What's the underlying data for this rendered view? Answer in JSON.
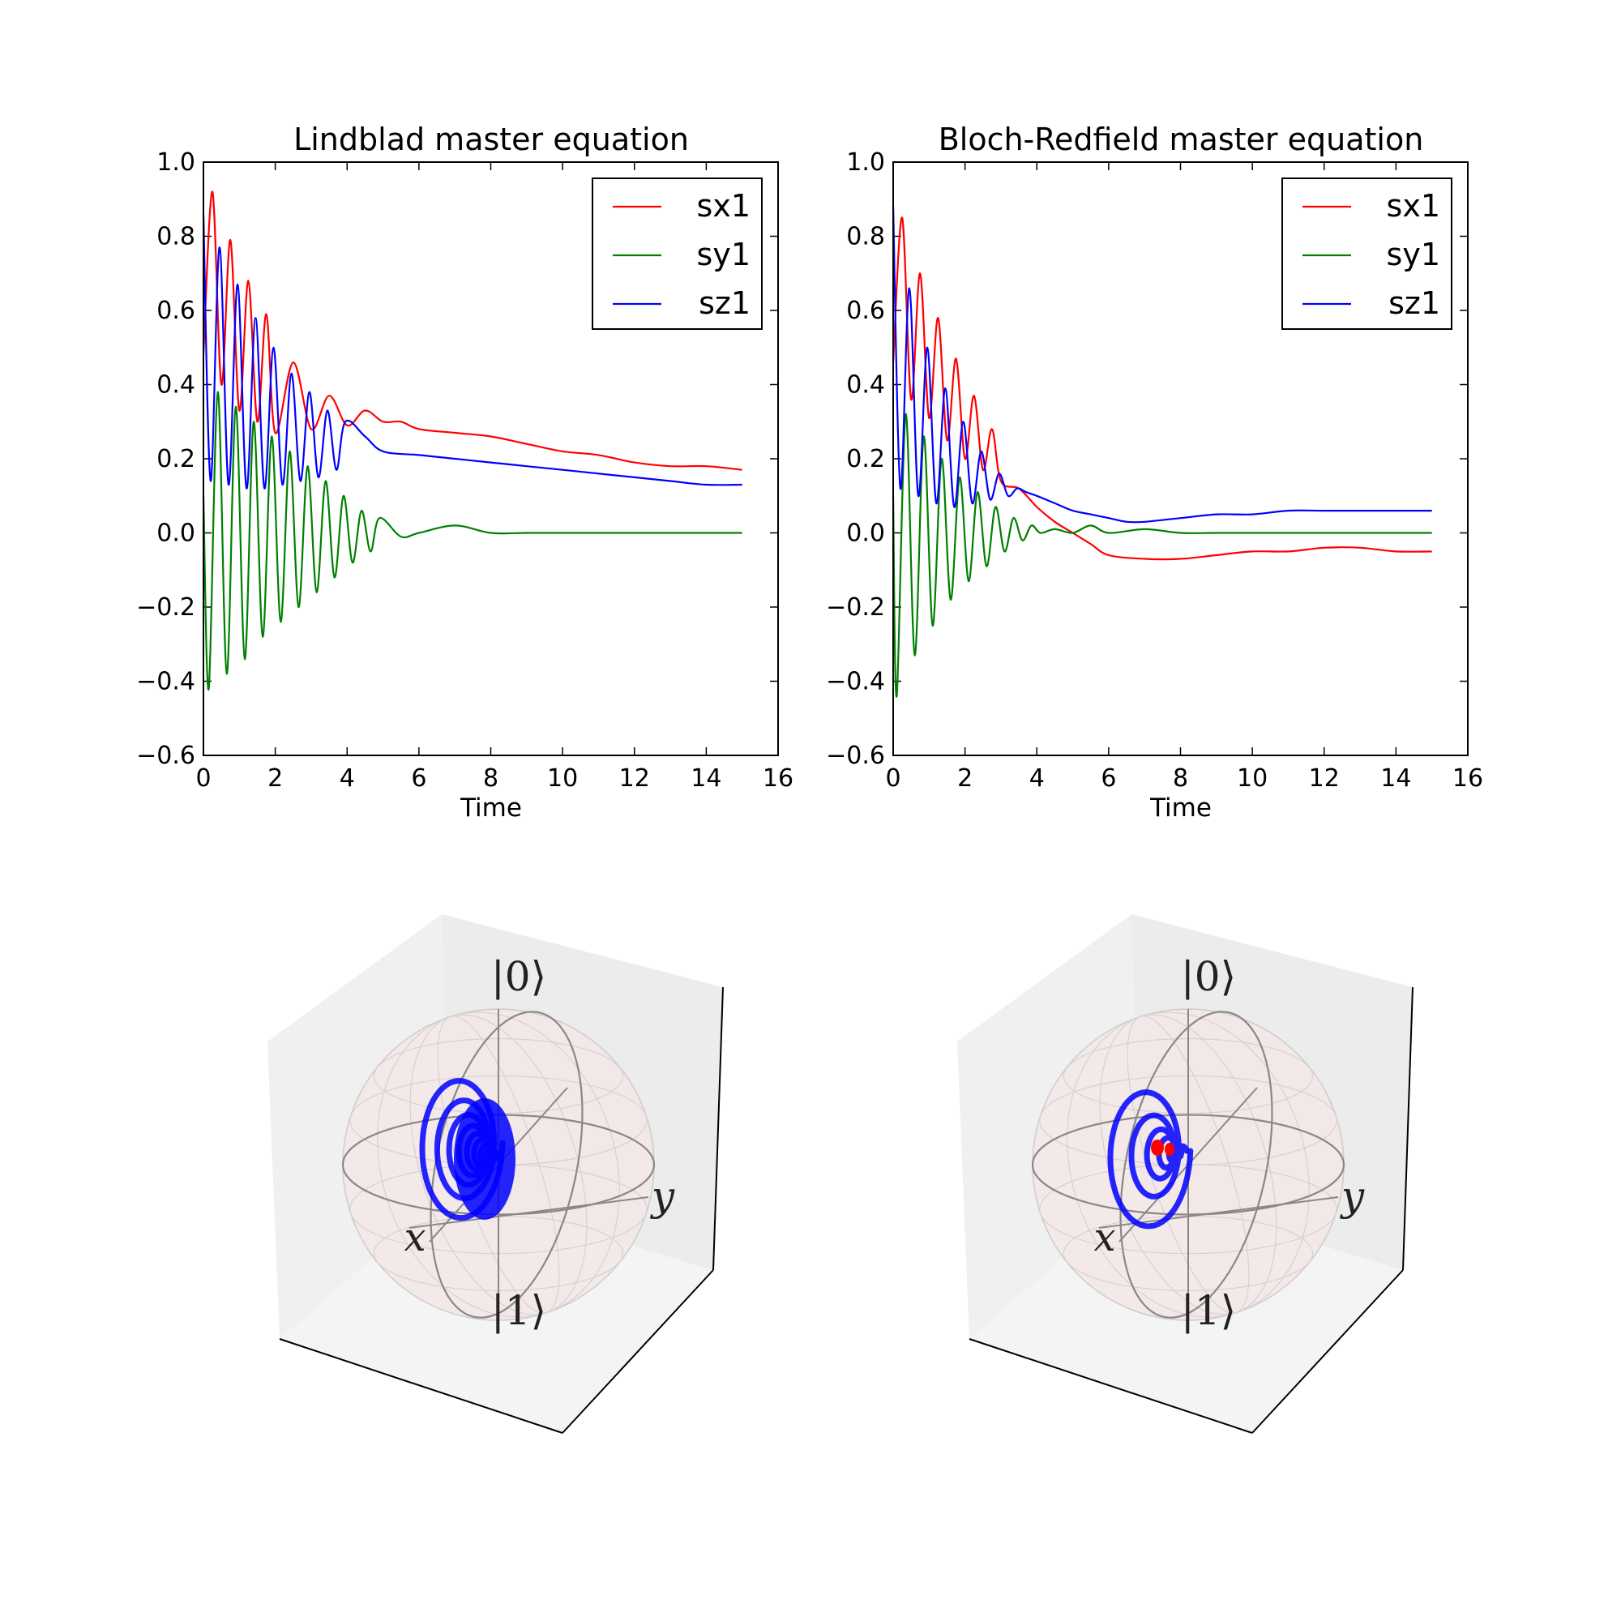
{
  "chart_data": [
    {
      "type": "line",
      "title": "Lindblad master equation",
      "xlabel": "Time",
      "ylabel": "",
      "xlim": [
        0,
        16
      ],
      "ylim": [
        -0.6,
        1.0
      ],
      "xticks": [
        0,
        2,
        4,
        6,
        8,
        10,
        12,
        14,
        16
      ],
      "yticks": [
        -0.6,
        -0.4,
        -0.2,
        0.0,
        0.2,
        0.4,
        0.6,
        0.8,
        1.0
      ],
      "xtick_labels": [
        "0",
        "2",
        "4",
        "6",
        "8",
        "10",
        "12",
        "14",
        "16"
      ],
      "ytick_labels": [
        "−0.6",
        "−0.4",
        "−0.2",
        "0.0",
        "0.2",
        "0.4",
        "0.6",
        "0.8",
        "1.0"
      ],
      "legend_position": "top-right",
      "grid": false,
      "series": [
        {
          "name": "sx1",
          "color": "#ff0000",
          "x": [
            0,
            0.25,
            0.5,
            0.75,
            1,
            1.25,
            1.5,
            1.75,
            2,
            2.5,
            3,
            3.5,
            4,
            4.5,
            5,
            5.5,
            6,
            7,
            8,
            9,
            10,
            11,
            12,
            13,
            14,
            15
          ],
          "y": [
            0.48,
            0.92,
            0.4,
            0.79,
            0.33,
            0.68,
            0.3,
            0.59,
            0.27,
            0.46,
            0.28,
            0.37,
            0.29,
            0.33,
            0.3,
            0.3,
            0.28,
            0.27,
            0.26,
            0.24,
            0.22,
            0.21,
            0.19,
            0.18,
            0.18,
            0.17
          ]
        },
        {
          "name": "sy1",
          "color": "#008000",
          "x": [
            0,
            0.15,
            0.4,
            0.65,
            0.9,
            1.15,
            1.4,
            1.65,
            1.9,
            2.15,
            2.4,
            2.65,
            2.9,
            3.15,
            3.4,
            3.65,
            3.9,
            4.15,
            4.4,
            4.65,
            4.9,
            5.5,
            6,
            7,
            8,
            9,
            10,
            11,
            12,
            13,
            14,
            15
          ],
          "y": [
            0.1,
            -0.42,
            0.38,
            -0.38,
            0.34,
            -0.34,
            0.3,
            -0.28,
            0.26,
            -0.24,
            0.22,
            -0.2,
            0.18,
            -0.16,
            0.14,
            -0.12,
            0.1,
            -0.08,
            0.06,
            -0.05,
            0.04,
            -0.01,
            0.0,
            0.02,
            0.0,
            0.0,
            0.0,
            0.0,
            0.0,
            0.0,
            0.0,
            0.0
          ]
        },
        {
          "name": "sz1",
          "color": "#0000ff",
          "x": [
            0,
            0.2,
            0.45,
            0.7,
            0.95,
            1.2,
            1.45,
            1.7,
            1.95,
            2.2,
            2.45,
            2.7,
            2.95,
            3.2,
            3.45,
            3.7,
            3.95,
            4.5,
            5,
            6,
            7,
            8,
            9,
            10,
            11,
            12,
            13,
            14,
            15
          ],
          "y": [
            0.86,
            0.14,
            0.77,
            0.13,
            0.67,
            0.12,
            0.58,
            0.12,
            0.5,
            0.13,
            0.43,
            0.14,
            0.38,
            0.15,
            0.33,
            0.17,
            0.3,
            0.26,
            0.22,
            0.21,
            0.2,
            0.19,
            0.18,
            0.17,
            0.16,
            0.15,
            0.14,
            0.13,
            0.13
          ]
        }
      ]
    },
    {
      "type": "line",
      "title": "Bloch-Redfield master equation",
      "xlabel": "Time",
      "ylabel": "",
      "xlim": [
        0,
        16
      ],
      "ylim": [
        -0.6,
        1.0
      ],
      "xticks": [
        0,
        2,
        4,
        6,
        8,
        10,
        12,
        14,
        16
      ],
      "yticks": [
        -0.6,
        -0.4,
        -0.2,
        0.0,
        0.2,
        0.4,
        0.6,
        0.8,
        1.0
      ],
      "xtick_labels": [
        "0",
        "2",
        "4",
        "6",
        "8",
        "10",
        "12",
        "14",
        "16"
      ],
      "ytick_labels": [
        "−0.6",
        "−0.4",
        "−0.2",
        "0.0",
        "0.2",
        "0.4",
        "0.6",
        "0.8",
        "1.0"
      ],
      "legend_position": "top-right",
      "grid": false,
      "series": [
        {
          "name": "sx1",
          "color": "#ff0000",
          "x": [
            0,
            0.25,
            0.5,
            0.75,
            1,
            1.25,
            1.5,
            1.75,
            2,
            2.25,
            2.5,
            2.75,
            3,
            3.5,
            4,
            4.5,
            5,
            5.5,
            6,
            7,
            8,
            9,
            10,
            11,
            12,
            13,
            14,
            15
          ],
          "y": [
            0.46,
            0.85,
            0.36,
            0.7,
            0.31,
            0.58,
            0.25,
            0.47,
            0.2,
            0.37,
            0.17,
            0.28,
            0.14,
            0.12,
            0.07,
            0.03,
            0.0,
            -0.03,
            -0.06,
            -0.07,
            -0.07,
            -0.06,
            -0.05,
            -0.05,
            -0.04,
            -0.04,
            -0.05,
            -0.05
          ]
        },
        {
          "name": "sy1",
          "color": "#008000",
          "x": [
            0,
            0.1,
            0.35,
            0.6,
            0.85,
            1.1,
            1.35,
            1.6,
            1.85,
            2.1,
            2.35,
            2.6,
            2.85,
            3.1,
            3.35,
            3.6,
            3.85,
            4.1,
            4.5,
            5,
            5.5,
            6,
            7,
            8,
            9,
            10,
            11,
            12,
            13,
            14,
            15
          ],
          "y": [
            0.1,
            -0.44,
            0.32,
            -0.33,
            0.26,
            -0.25,
            0.2,
            -0.18,
            0.15,
            -0.13,
            0.11,
            -0.09,
            0.07,
            -0.05,
            0.04,
            -0.02,
            0.02,
            0.0,
            0.01,
            0.0,
            0.02,
            0.0,
            0.01,
            0.0,
            0.0,
            0.0,
            0.0,
            0.0,
            0.0,
            0.0,
            0.0
          ]
        },
        {
          "name": "sz1",
          "color": "#0000ff",
          "x": [
            0,
            0.2,
            0.45,
            0.7,
            0.95,
            1.2,
            1.45,
            1.7,
            1.95,
            2.2,
            2.45,
            2.7,
            2.95,
            3.2,
            3.45,
            3.7,
            4,
            4.5,
            5,
            5.5,
            6,
            6.5,
            7,
            8,
            9,
            10,
            11,
            12,
            13,
            14,
            15
          ],
          "y": [
            0.88,
            0.12,
            0.66,
            0.1,
            0.5,
            0.08,
            0.39,
            0.07,
            0.3,
            0.08,
            0.22,
            0.09,
            0.16,
            0.1,
            0.12,
            0.11,
            0.1,
            0.08,
            0.06,
            0.05,
            0.04,
            0.03,
            0.03,
            0.04,
            0.05,
            0.05,
            0.06,
            0.06,
            0.06,
            0.06,
            0.06
          ]
        }
      ]
    },
    {
      "type": "scatter",
      "plot": "bloch-sphere",
      "labels": {
        "north": "|0⟩",
        "south": "|1⟩",
        "x_axis": "x",
        "y_axis": "y"
      },
      "trajectory_color": "#0000ff",
      "turns": 9,
      "final_point": [
        0.17,
        0.0,
        0.13
      ]
    },
    {
      "type": "scatter",
      "plot": "bloch-sphere",
      "labels": {
        "north": "|0⟩",
        "south": "|1⟩",
        "x_axis": "x",
        "y_axis": "y"
      },
      "trajectory_color": "#0000ff",
      "center_marker_color": "#ff0000",
      "turns": 6,
      "final_point": [
        -0.05,
        0.0,
        0.06
      ]
    }
  ]
}
